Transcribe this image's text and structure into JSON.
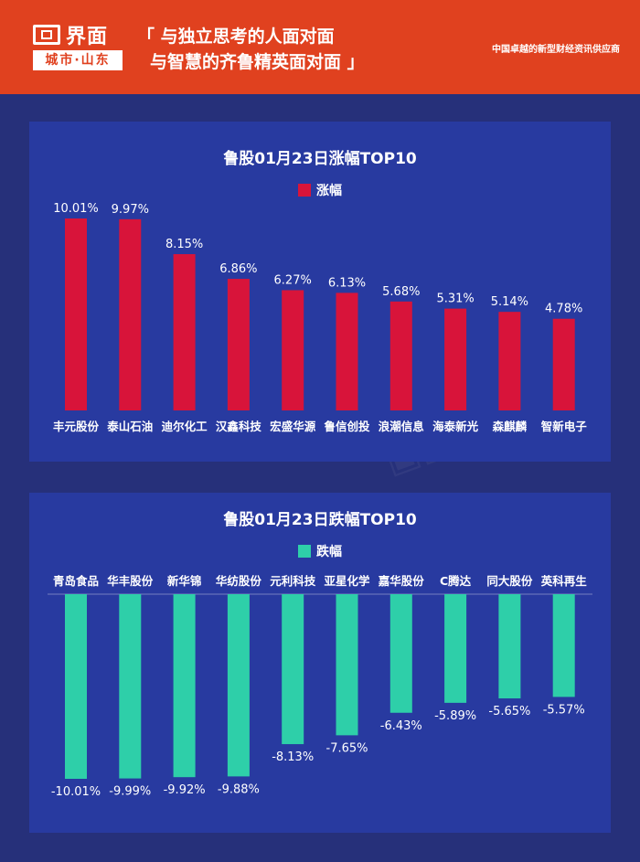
{
  "header": {
    "logo_name": "界面",
    "logo_sub": "城市·山东",
    "slogan_line1": "「 与独立思考的人面对面",
    "slogan_line2": "与智慧的齐鲁精英面对面 」",
    "tagline": "中国卓越的新型财经资讯供应商"
  },
  "colors": {
    "header_bg": "#e0411f",
    "page_bg": "#26307a",
    "panel_bg": "#283aa0",
    "gain": "#d8143a",
    "loss": "#2ecfa9"
  },
  "chart_data": [
    {
      "type": "bar",
      "title": "鲁股01月23日涨幅TOP10",
      "legend": "涨幅",
      "categories": [
        "丰元股份",
        "泰山石油",
        "迪尔化工",
        "汉鑫科技",
        "宏盛华源",
        "鲁信创投",
        "浪潮信息",
        "海泰新光",
        "森麒麟",
        "智新电子"
      ],
      "series": [
        {
          "name": "涨幅",
          "values": [
            10.01,
            9.97,
            8.15,
            6.86,
            6.27,
            6.13,
            5.68,
            5.31,
            5.14,
            4.78
          ]
        }
      ],
      "value_labels": [
        "10.01%",
        "9.97%",
        "8.15%",
        "6.86%",
        "6.27%",
        "6.13%",
        "5.68%",
        "5.31%",
        "5.14%",
        "4.78%"
      ],
      "ylim": [
        0,
        10.01
      ],
      "grid": false
    },
    {
      "type": "bar",
      "title": "鲁股01月23日跌幅TOP10",
      "legend": "跌幅",
      "categories": [
        "青岛食品",
        "华丰股份",
        "新华锦",
        "华纺股份",
        "元利科技",
        "亚星化学",
        "嘉华股份",
        "C腾达",
        "同大股份",
        "英科再生"
      ],
      "series": [
        {
          "name": "跌幅",
          "values": [
            -10.01,
            -9.99,
            -9.92,
            -9.88,
            -8.13,
            -7.65,
            -6.43,
            -5.89,
            -5.65,
            -5.57
          ]
        }
      ],
      "value_labels": [
        "-10.01%",
        "-9.99%",
        "-9.92%",
        "-9.88%",
        "-8.13%",
        "-7.65%",
        "-6.43%",
        "-5.89%",
        "-5.65%",
        "-5.57%"
      ],
      "ylim": [
        -10.01,
        0
      ],
      "grid": false
    }
  ]
}
